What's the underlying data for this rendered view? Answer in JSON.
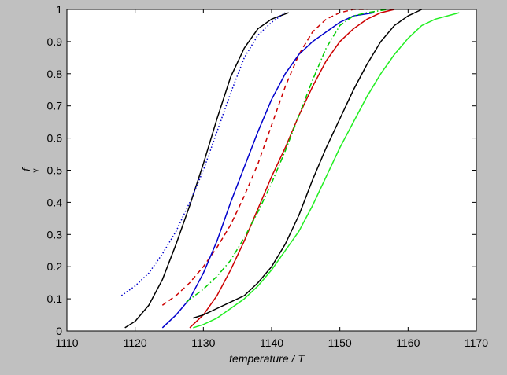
{
  "chart_data": {
    "type": "line",
    "xlabel": "temperature / T",
    "ylabel": "f",
    "ylabel_sub": "γ",
    "xlim": [
      1110,
      1170
    ],
    "xticks": [
      1110,
      1120,
      1130,
      1140,
      1150,
      1160,
      1170
    ],
    "ylim": [
      0,
      1
    ],
    "yticks": [
      0,
      0.1,
      0.2,
      0.3,
      0.4,
      0.5,
      0.6,
      0.7,
      0.8,
      0.9,
      1
    ],
    "series": [
      {
        "color": "#000000",
        "dash": "solid",
        "x": [
          1118.5,
          1120,
          1122,
          1124,
          1126,
          1128,
          1130,
          1132,
          1134,
          1136,
          1138,
          1140,
          1142.5
        ],
        "values": [
          0.01,
          0.03,
          0.08,
          0.16,
          0.27,
          0.39,
          0.52,
          0.66,
          0.79,
          0.88,
          0.94,
          0.97,
          0.99
        ]
      },
      {
        "color": "#0000cc",
        "dash": "dotted",
        "x": [
          1118,
          1120,
          1122,
          1124,
          1126,
          1128,
          1130,
          1132,
          1134,
          1136,
          1138,
          1140,
          1142
        ],
        "values": [
          0.11,
          0.14,
          0.18,
          0.24,
          0.31,
          0.4,
          0.5,
          0.62,
          0.74,
          0.85,
          0.92,
          0.96,
          0.99
        ]
      },
      {
        "color": "#cc0000",
        "dash": "dashed",
        "x": [
          1124,
          1126,
          1128,
          1130,
          1132,
          1134,
          1136,
          1138,
          1140,
          1142,
          1144,
          1146,
          1148,
          1150,
          1152,
          1154
        ],
        "values": [
          0.08,
          0.11,
          0.15,
          0.2,
          0.26,
          0.33,
          0.42,
          0.52,
          0.64,
          0.76,
          0.86,
          0.93,
          0.97,
          0.99,
          1.0,
          1.0
        ]
      },
      {
        "color": "#0000cc",
        "dash": "solid",
        "x": [
          1124,
          1126,
          1128,
          1130,
          1132,
          1134,
          1136,
          1138,
          1140,
          1142,
          1144,
          1146,
          1148,
          1150,
          1152,
          1155
        ],
        "values": [
          0.01,
          0.05,
          0.1,
          0.18,
          0.28,
          0.4,
          0.51,
          0.62,
          0.72,
          0.8,
          0.86,
          0.9,
          0.93,
          0.96,
          0.98,
          0.99
        ]
      },
      {
        "color": "#cc0000",
        "dash": "solid",
        "x": [
          1128,
          1130,
          1132,
          1134,
          1136,
          1138,
          1140,
          1142,
          1144,
          1146,
          1148,
          1150,
          1152,
          1154,
          1156,
          1158
        ],
        "values": [
          0.01,
          0.05,
          0.11,
          0.19,
          0.28,
          0.38,
          0.48,
          0.57,
          0.67,
          0.76,
          0.84,
          0.9,
          0.94,
          0.97,
          0.99,
          1.0
        ]
      },
      {
        "color": "#00cc00",
        "dash": "dashdot",
        "x": [
          1127.5,
          1130,
          1132,
          1134,
          1136,
          1138,
          1140,
          1142,
          1144,
          1146,
          1148,
          1150,
          1152,
          1154,
          1157
        ],
        "values": [
          0.09,
          0.13,
          0.17,
          0.22,
          0.29,
          0.37,
          0.46,
          0.56,
          0.67,
          0.78,
          0.88,
          0.95,
          0.98,
          0.99,
          1.0
        ]
      },
      {
        "color": "#000000",
        "dash": "solid",
        "x": [
          1128.5,
          1130,
          1132,
          1134,
          1136,
          1138,
          1140,
          1142,
          1144,
          1146,
          1148,
          1150,
          1152,
          1154,
          1156,
          1158,
          1160,
          1162
        ],
        "values": [
          0.04,
          0.05,
          0.07,
          0.09,
          0.11,
          0.15,
          0.2,
          0.27,
          0.36,
          0.47,
          0.57,
          0.66,
          0.75,
          0.83,
          0.9,
          0.95,
          0.98,
          1.0
        ]
      },
      {
        "color": "#22ee22",
        "dash": "solid",
        "x": [
          1128.5,
          1130,
          1132,
          1134,
          1136,
          1138,
          1140,
          1142,
          1144,
          1146,
          1148,
          1150,
          1152,
          1154,
          1156,
          1158,
          1160,
          1162,
          1164,
          1167.5
        ],
        "values": [
          0.01,
          0.02,
          0.04,
          0.07,
          0.1,
          0.14,
          0.19,
          0.25,
          0.31,
          0.39,
          0.48,
          0.57,
          0.65,
          0.73,
          0.8,
          0.86,
          0.91,
          0.95,
          0.97,
          0.99
        ]
      }
    ]
  }
}
